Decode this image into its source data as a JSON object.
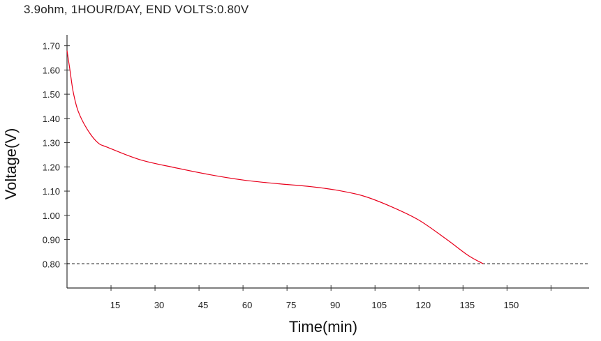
{
  "chart_data": {
    "type": "line",
    "title": "3.9ohm, 1HOUR/DAY, END VOLTS:0.80V",
    "xlabel": "Time(min)",
    "ylabel": "Voltage(V)",
    "xlim": [
      0,
      178
    ],
    "ylim": [
      0.7,
      1.745
    ],
    "x_ticks": [
      15,
      30,
      45,
      60,
      75,
      90,
      105,
      120,
      135,
      150,
      165
    ],
    "x_tick_labels": [
      "15",
      "30",
      "45",
      "60",
      "75",
      "90",
      "105",
      "120",
      "135",
      "150",
      ""
    ],
    "y_ticks": [
      0.8,
      0.9,
      1.0,
      1.1,
      1.2,
      1.3,
      1.4,
      1.5,
      1.6,
      1.7
    ],
    "y_tick_labels": [
      "0.80",
      "0.90",
      "1.00",
      "1.10",
      "1.20",
      "1.30",
      "1.40",
      "1.50",
      "1.60",
      "1.70"
    ],
    "grid": false,
    "reference_line": {
      "y": 0.8,
      "style": "dashed",
      "color": "#000000"
    },
    "series": [
      {
        "color": "#e8001c",
        "x": [
          0,
          1,
          2.1,
          3.8,
          6.9,
          10.5,
          14,
          24.8,
          36.7,
          48.6,
          60.5,
          72.4,
          82,
          91.4,
          101,
          110.5,
          120,
          129.5,
          136.7,
          141.9
        ],
        "y": [
          1.68,
          1.6,
          1.51,
          1.43,
          1.355,
          1.3,
          1.28,
          1.23,
          1.197,
          1.168,
          1.145,
          1.13,
          1.12,
          1.105,
          1.08,
          1.036,
          0.98,
          0.9,
          0.835,
          0.8
        ]
      }
    ]
  }
}
